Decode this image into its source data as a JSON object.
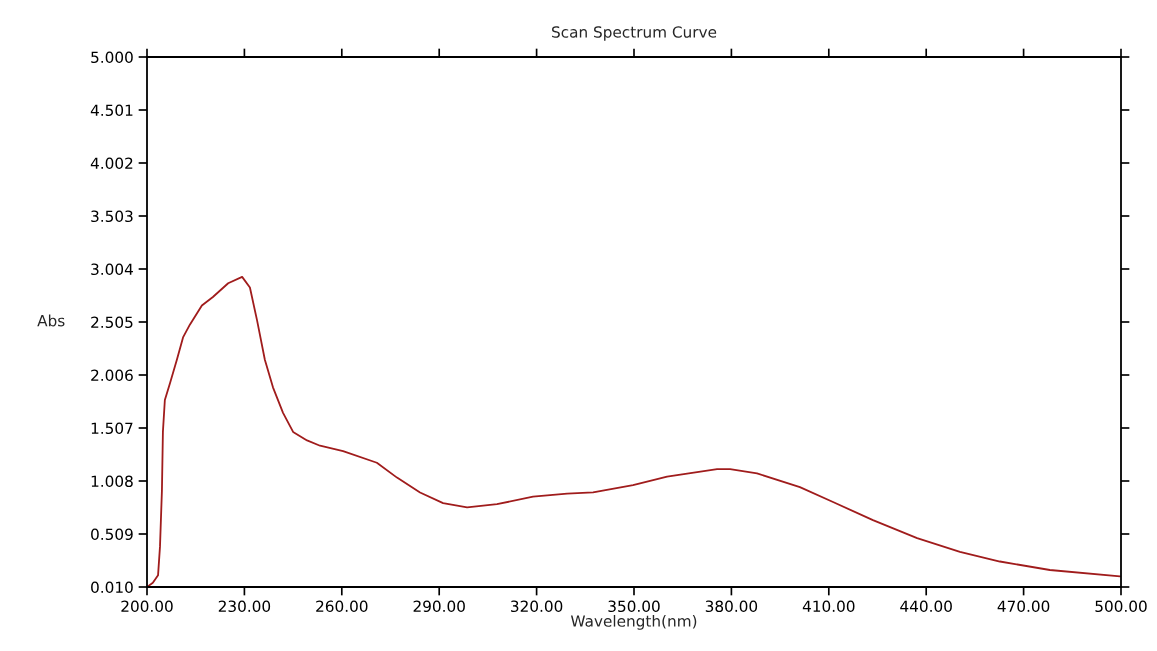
{
  "chart_data": {
    "type": "line",
    "title": "Scan Spectrum Curve",
    "xlabel": "Wavelength(nm)",
    "ylabel": "Abs",
    "x": [
      200,
      201.8,
      203.4,
      204,
      204.6,
      204.9,
      205.5,
      207.1,
      209.2,
      211.1,
      213.2,
      216.9,
      220.3,
      225,
      229.3,
      231.7,
      233.9,
      236.3,
      238.8,
      241.9,
      245,
      249.3,
      253.3,
      260.4,
      270.8,
      277,
      284.1,
      291.2,
      298.6,
      307.8,
      318.9,
      329.4,
      337.4,
      349.7,
      360.2,
      375.6,
      379.6,
      387.9,
      401.1,
      411.3,
      423.6,
      437.2,
      450.4,
      462.7,
      478.1,
      499.7
    ],
    "series": [
      {
        "color": "#a01c1c",
        "values": [
          0.01,
          0.05,
          0.12,
          0.39,
          0.92,
          1.47,
          1.77,
          1.93,
          2.15,
          2.36,
          2.48,
          2.66,
          2.74,
          2.87,
          2.93,
          2.83,
          2.52,
          2.15,
          1.89,
          1.65,
          1.47,
          1.39,
          1.34,
          1.29,
          1.18,
          1.04,
          0.9,
          0.8,
          0.76,
          0.79,
          0.86,
          0.89,
          0.9,
          0.97,
          1.05,
          1.12,
          1.12,
          1.08,
          0.95,
          0.81,
          0.64,
          0.47,
          0.34,
          0.25,
          0.17,
          0.11
        ]
      }
    ],
    "xlim": [
      200,
      500
    ],
    "ylim": [
      0.01,
      5.0
    ],
    "xticks": [
      {
        "value": 200,
        "label": "200.00"
      },
      {
        "value": 230,
        "label": "230.00"
      },
      {
        "value": 260,
        "label": "260.00"
      },
      {
        "value": 290,
        "label": "290.00"
      },
      {
        "value": 320,
        "label": "320.00"
      },
      {
        "value": 350,
        "label": "350.00"
      },
      {
        "value": 380,
        "label": "380.00"
      },
      {
        "value": 410,
        "label": "410.00"
      },
      {
        "value": 440,
        "label": "440.00"
      },
      {
        "value": 470,
        "label": "470.00"
      },
      {
        "value": 500,
        "label": "500.00"
      }
    ],
    "yticks": [
      {
        "value": 0.01,
        "label": "0.010"
      },
      0.509,
      1.008,
      1.507,
      2.006,
      2.505,
      3.004,
      3.503,
      4.002,
      4.501,
      {
        "value": 5.0,
        "label": "5.000"
      }
    ],
    "grid": false,
    "marker": "none",
    "line_style": "solid"
  }
}
